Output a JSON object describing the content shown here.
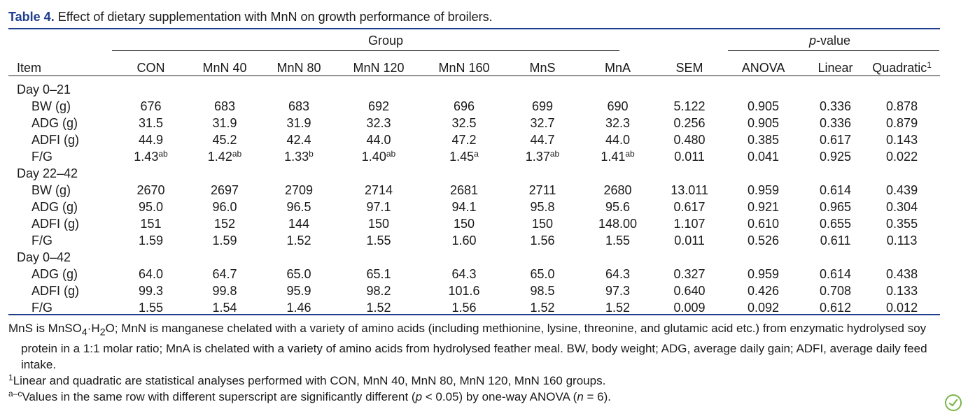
{
  "caption": {
    "label": "Table 4.",
    "text": " Effect of dietary supplementation with MnN on growth performance of broilers."
  },
  "headers": {
    "group_span": "Group",
    "pvalue_prefix": "p",
    "pvalue_suffix": "-value",
    "item": "Item",
    "columns": [
      "CON",
      "MnN 40",
      "MnN 80",
      "MnN 120",
      "MnN 160",
      "MnS",
      "MnA",
      "SEM",
      "ANOVA",
      "Linear",
      "Quadratic"
    ],
    "quadratic_sup": "1"
  },
  "sections": [
    {
      "label": "Day 0–21",
      "rows": [
        {
          "item": "BW (g)",
          "values": [
            "676",
            "683",
            "683",
            "692",
            "696",
            "699",
            "690",
            "5.122",
            "0.905",
            "0.336",
            "0.878"
          ],
          "sups": [
            "",
            "",
            "",
            "",
            "",
            "",
            "",
            "",
            "",
            "",
            ""
          ]
        },
        {
          "item": "ADG (g)",
          "values": [
            "31.5",
            "31.9",
            "31.9",
            "32.3",
            "32.5",
            "32.7",
            "32.3",
            "0.256",
            "0.905",
            "0.336",
            "0.879"
          ],
          "sups": [
            "",
            "",
            "",
            "",
            "",
            "",
            "",
            "",
            "",
            "",
            ""
          ]
        },
        {
          "item": "ADFI (g)",
          "values": [
            "44.9",
            "45.2",
            "42.4",
            "44.0",
            "47.2",
            "44.7",
            "44.0",
            "0.480",
            "0.385",
            "0.617",
            "0.143"
          ],
          "sups": [
            "",
            "",
            "",
            "",
            "",
            "",
            "",
            "",
            "",
            "",
            ""
          ]
        },
        {
          "item": "F/G",
          "values": [
            "1.43",
            "1.42",
            "1.33",
            "1.40",
            "1.45",
            "1.37",
            "1.41",
            "0.011",
            "0.041",
            "0.925",
            "0.022"
          ],
          "sups": [
            "ab",
            "ab",
            "b",
            "ab",
            "a",
            "ab",
            "ab",
            "",
            "",
            "",
            ""
          ]
        }
      ]
    },
    {
      "label": "Day 22–42",
      "rows": [
        {
          "item": "BW (g)",
          "values": [
            "2670",
            "2697",
            "2709",
            "2714",
            "2681",
            "2711",
            "2680",
            "13.011",
            "0.959",
            "0.614",
            "0.439"
          ],
          "sups": [
            "",
            "",
            "",
            "",
            "",
            "",
            "",
            "",
            "",
            "",
            ""
          ]
        },
        {
          "item": "ADG (g)",
          "values": [
            "95.0",
            "96.0",
            "96.5",
            "97.1",
            "94.1",
            "95.8",
            "95.6",
            "0.617",
            "0.921",
            "0.965",
            "0.304"
          ],
          "sups": [
            "",
            "",
            "",
            "",
            "",
            "",
            "",
            "",
            "",
            "",
            ""
          ]
        },
        {
          "item": "ADFI (g)",
          "values": [
            "151",
            "152",
            "144",
            "150",
            "150",
            "150",
            "148.00",
            "1.107",
            "0.610",
            "0.655",
            "0.355"
          ],
          "sups": [
            "",
            "",
            "",
            "",
            "",
            "",
            "",
            "",
            "",
            "",
            ""
          ]
        },
        {
          "item": "F/G",
          "values": [
            "1.59",
            "1.59",
            "1.52",
            "1.55",
            "1.60",
            "1.56",
            "1.55",
            "0.011",
            "0.526",
            "0.611",
            "0.113"
          ],
          "sups": [
            "",
            "",
            "",
            "",
            "",
            "",
            "",
            "",
            "",
            "",
            ""
          ]
        }
      ]
    },
    {
      "label": "Day 0–42",
      "rows": [
        {
          "item": "ADG (g)",
          "values": [
            "64.0",
            "64.7",
            "65.0",
            "65.1",
            "64.3",
            "65.0",
            "64.3",
            "0.327",
            "0.959",
            "0.614",
            "0.438"
          ],
          "sups": [
            "",
            "",
            "",
            "",
            "",
            "",
            "",
            "",
            "",
            "",
            ""
          ]
        },
        {
          "item": "ADFI (g)",
          "values": [
            "99.3",
            "99.8",
            "95.9",
            "98.2",
            "101.6",
            "98.5",
            "97.3",
            "0.640",
            "0.426",
            "0.708",
            "0.133"
          ],
          "sups": [
            "",
            "",
            "",
            "",
            "",
            "",
            "",
            "",
            "",
            "",
            ""
          ]
        },
        {
          "item": "F/G",
          "values": [
            "1.55",
            "1.54",
            "1.46",
            "1.52",
            "1.56",
            "1.52",
            "1.52",
            "0.009",
            "0.092",
            "0.612",
            "0.012"
          ],
          "sups": [
            "",
            "",
            "",
            "",
            "",
            "",
            "",
            "",
            "",
            "",
            ""
          ]
        }
      ]
    }
  ],
  "footnotes": {
    "abbrev_a": "MnS is MnSO",
    "abbrev_sub4": "4",
    "abbrev_b": "·H",
    "abbrev_sub2": "2",
    "abbrev_c": "O; MnN is manganese chelated with a variety of amino acids (including methionine, lysine, threonine, and glutamic acid etc.) from enzymatic hydrolysed soy protein in a 1:1 molar ratio; MnA is chelated with a variety of amino acids from hydrolysed feather meal. BW, body weight; ADG, average daily gain; ADFI, average daily feed intake.",
    "note1_sup": "1",
    "note1": "Linear and quadratic are statistical analyses performed with CON, MnN 40, MnN 80, MnN 120, MnN 160 groups.",
    "note2_sup": "a–c",
    "note2_a": "Values in the same row with different superscript are significantly different (",
    "note2_p": "p",
    "note2_b": " < 0.05) by one-way ANOVA (",
    "note2_n": "n",
    "note2_c": " = 6)."
  },
  "badge_icon": "check-leaf-icon",
  "colors": {
    "accent": "#1f3e8c",
    "badge": "#7ab648"
  }
}
